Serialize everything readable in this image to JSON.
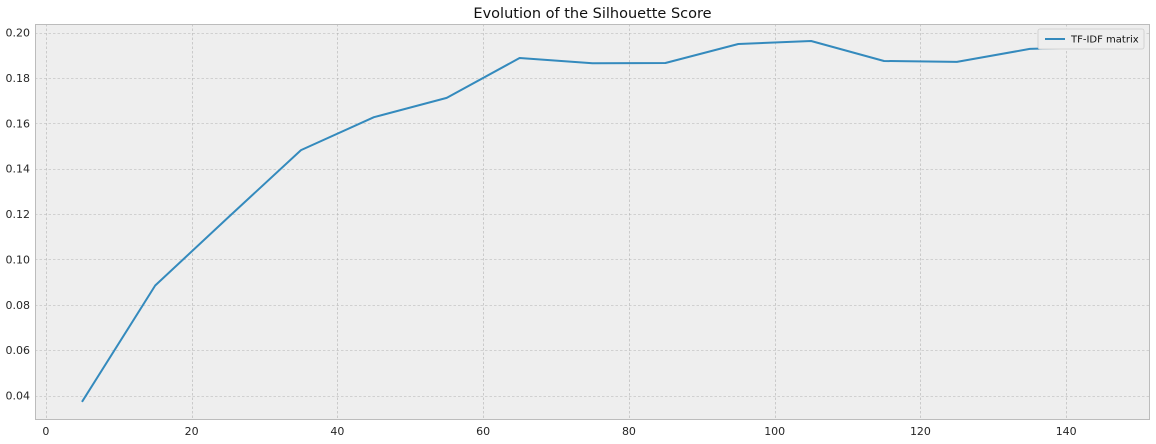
{
  "chart_data": {
    "type": "line",
    "title": "Evolution of the Silhouette Score",
    "xlabel": "",
    "ylabel": "",
    "xlim": [
      -1.5,
      151.5
    ],
    "ylim": [
      0.0292,
      0.2038
    ],
    "xticks": [
      0,
      20,
      40,
      60,
      80,
      100,
      120,
      140
    ],
    "yticks": [
      0.04,
      0.06,
      0.08,
      0.1,
      0.12,
      0.14,
      0.16,
      0.18,
      0.2
    ],
    "grid": true,
    "legend_position": "top-right",
    "series": [
      {
        "name": "TF-IDF matrix",
        "color": "#348abd",
        "x": [
          5,
          15,
          25,
          35,
          45,
          55,
          65,
          75,
          85,
          95,
          105,
          115,
          125,
          135,
          145
        ],
        "y": [
          0.0375,
          0.0885,
          0.1185,
          0.1482,
          0.1627,
          0.1712,
          0.1888,
          0.1865,
          0.1866,
          0.195,
          0.1963,
          0.1875,
          0.1871,
          0.1928,
          0.1938
        ]
      }
    ]
  },
  "colors": {
    "plot_background": "#eeeeee",
    "grid": "#b2b2b2",
    "axis_border": "#bcbcbc",
    "legend_background": "#eeeeee"
  }
}
